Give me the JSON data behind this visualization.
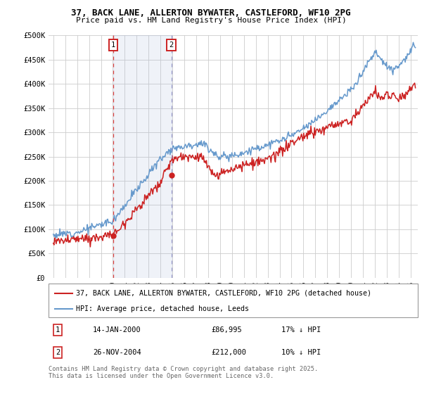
{
  "title1": "37, BACK LANE, ALLERTON BYWATER, CASTLEFORD, WF10 2PG",
  "title2": "Price paid vs. HM Land Registry's House Price Index (HPI)",
  "ylim": [
    0,
    500000
  ],
  "yticks": [
    0,
    50000,
    100000,
    150000,
    200000,
    250000,
    300000,
    350000,
    400000,
    450000,
    500000
  ],
  "ytick_labels": [
    "£0",
    "£50K",
    "£100K",
    "£150K",
    "£200K",
    "£250K",
    "£300K",
    "£350K",
    "£400K",
    "£450K",
    "£500K"
  ],
  "xlim_start": 1994.6,
  "xlim_end": 2025.6,
  "xticks": [
    1995,
    1996,
    1997,
    1998,
    1999,
    2000,
    2001,
    2002,
    2003,
    2004,
    2005,
    2006,
    2007,
    2008,
    2009,
    2010,
    2011,
    2012,
    2013,
    2014,
    2015,
    2016,
    2017,
    2018,
    2019,
    2020,
    2021,
    2022,
    2023,
    2024,
    2025
  ],
  "vline1_x": 2000.04,
  "vline2_x": 2004.91,
  "vline1_color": "#dd4444",
  "vline2_color": "#9999cc",
  "vband_color": "#aabbdd",
  "red_line_color": "#cc2222",
  "blue_line_color": "#6699cc",
  "background_color": "#ffffff",
  "grid_color": "#cccccc",
  "legend_label_red": "37, BACK LANE, ALLERTON BYWATER, CASTLEFORD, WF10 2PG (detached house)",
  "legend_label_blue": "HPI: Average price, detached house, Leeds",
  "annotation1_date": "14-JAN-2000",
  "annotation1_price": "£86,995",
  "annotation1_hpi": "17% ↓ HPI",
  "annotation2_date": "26-NOV-2004",
  "annotation2_price": "£212,000",
  "annotation2_hpi": "10% ↓ HPI",
  "copyright_text": "Contains HM Land Registry data © Crown copyright and database right 2025.\nThis data is licensed under the Open Government Licence v3.0.",
  "sale1_x": 2000.04,
  "sale1_y": 86995,
  "sale2_x": 2004.91,
  "sale2_y": 212000
}
